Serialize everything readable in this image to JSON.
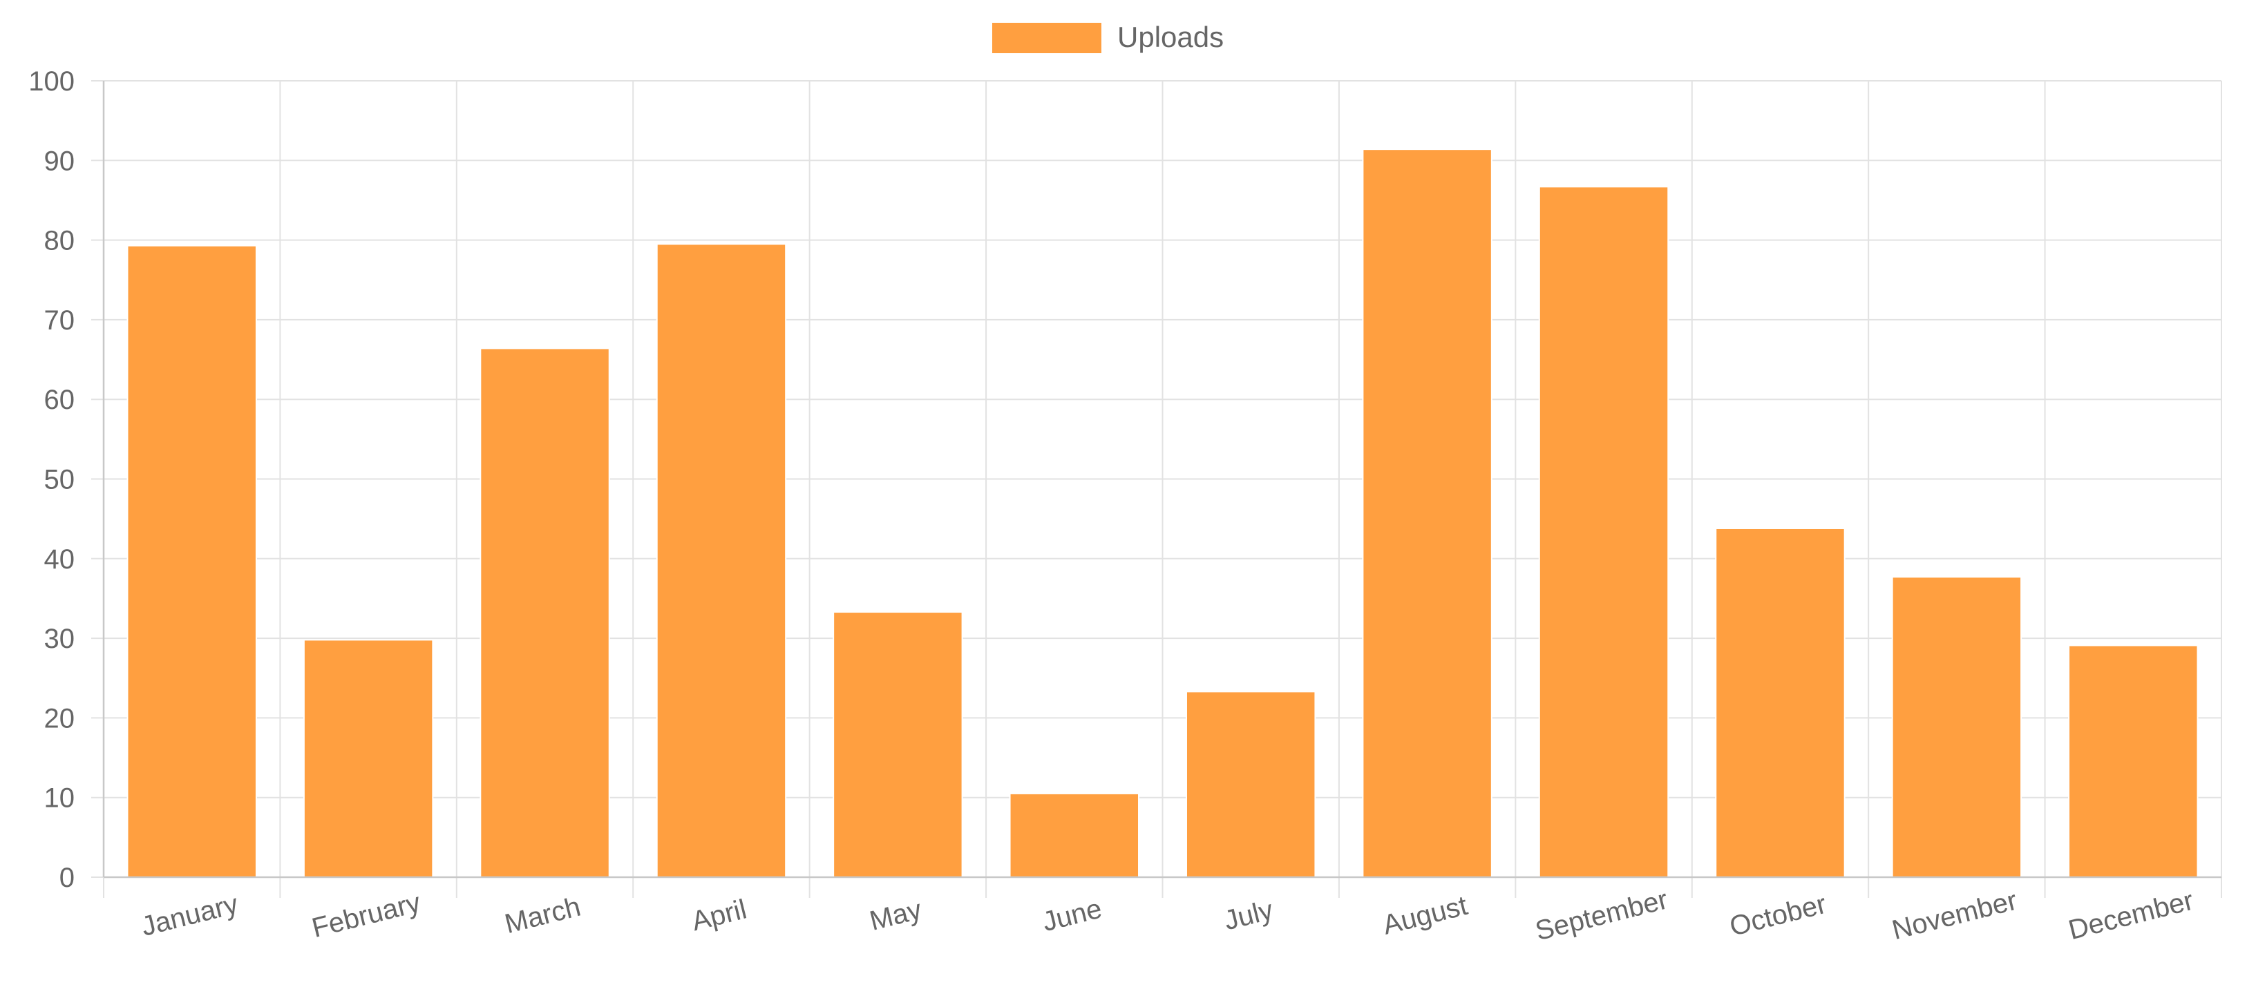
{
  "chart_data": {
    "type": "bar",
    "categories": [
      "January",
      "February",
      "March",
      "April",
      "May",
      "June",
      "July",
      "August",
      "September",
      "October",
      "November",
      "December"
    ],
    "series": [
      {
        "name": "Uploads",
        "color": "#ff9f40",
        "values": [
          79.3,
          29.8,
          66.4,
          79.5,
          33.3,
          10.5,
          23.3,
          91.4,
          86.7,
          43.8,
          37.7,
          29.1
        ]
      }
    ],
    "title": "",
    "xlabel": "",
    "ylabel": "",
    "ylim": [
      0,
      100
    ],
    "yticks": [
      "0",
      "10",
      "20",
      "30",
      "40",
      "50",
      "60",
      "70",
      "80",
      "90",
      "100"
    ],
    "grid": true,
    "legend_position": "top"
  }
}
